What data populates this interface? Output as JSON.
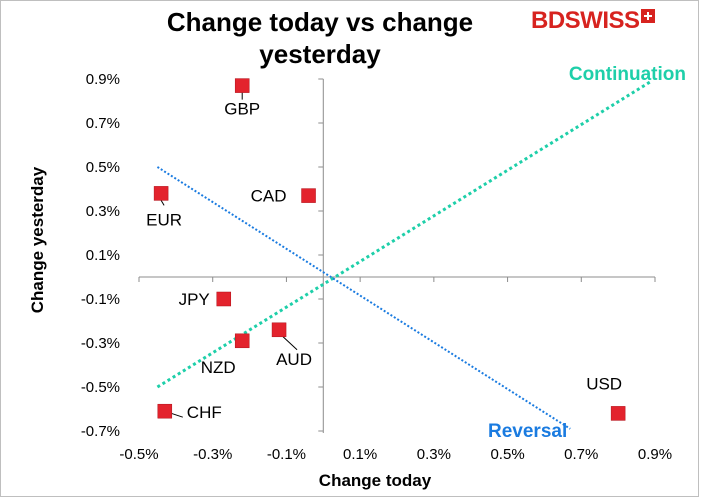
{
  "chart_data": {
    "type": "scatter",
    "title": "Change today vs change yesterday",
    "xlabel": "Change today",
    "ylabel": "Change yesterday",
    "xlim": [
      -0.5,
      0.9
    ],
    "ylim": [
      -0.7,
      0.9
    ],
    "xticks": [
      "-0.5%",
      "-0.3%",
      "-0.1%",
      "0.1%",
      "0.3%",
      "0.5%",
      "0.7%",
      "0.9%"
    ],
    "xtick_values": [
      -0.5,
      -0.3,
      -0.1,
      0.1,
      0.3,
      0.5,
      0.7,
      0.9
    ],
    "yticks": [
      "0.9%",
      "0.7%",
      "0.5%",
      "0.3%",
      "0.1%",
      "-0.1%",
      "-0.3%",
      "-0.5%",
      "-0.7%"
    ],
    "ytick_values": [
      0.9,
      0.7,
      0.5,
      0.3,
      0.1,
      -0.1,
      -0.3,
      -0.5,
      -0.7
    ],
    "grid": false,
    "points": [
      {
        "label": "GBP",
        "x": -0.22,
        "y": 0.87
      },
      {
        "label": "CAD",
        "x": -0.04,
        "y": 0.37
      },
      {
        "label": "EUR",
        "x": -0.44,
        "y": 0.38
      },
      {
        "label": "JPY",
        "x": -0.27,
        "y": -0.1
      },
      {
        "label": "AUD",
        "x": -0.12,
        "y": -0.24
      },
      {
        "label": "NZD",
        "x": -0.22,
        "y": -0.29
      },
      {
        "label": "CHF",
        "x": -0.43,
        "y": -0.61
      },
      {
        "label": "USD",
        "x": 0.8,
        "y": -0.62
      }
    ],
    "lines": [
      {
        "name": "Continuation",
        "x": [
          -0.45,
          0.89
        ],
        "y": [
          -0.5,
          0.89
        ],
        "color": "#1ecfa9"
      },
      {
        "name": "Reversal",
        "x": [
          -0.45,
          0.67
        ],
        "y": [
          0.5,
          -0.69
        ],
        "color": "#1a7be0"
      }
    ],
    "marker_color": "#e3232d"
  },
  "brand": {
    "name": "BDSWISS",
    "color": "#d7231f"
  }
}
